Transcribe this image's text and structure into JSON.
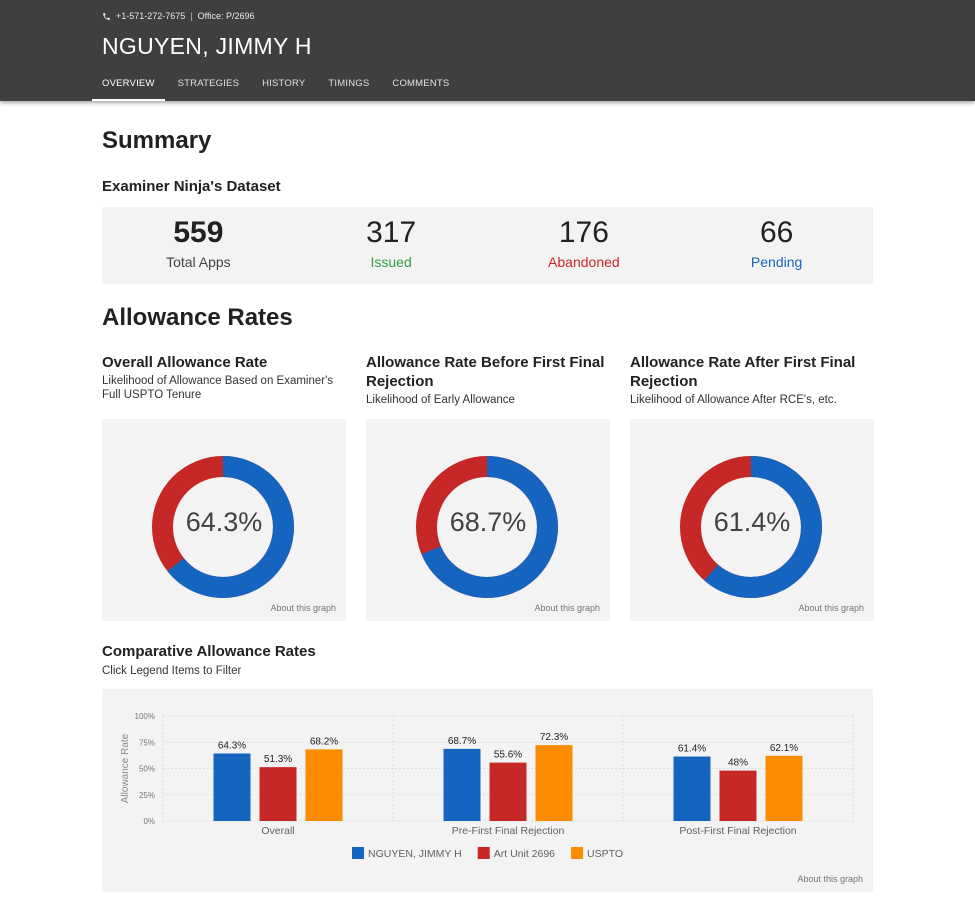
{
  "header": {
    "phone": "+1-571-272-7675",
    "separator": "|",
    "office": "Office: P/2696",
    "name": "NGUYEN, JIMMY H",
    "tabs": [
      {
        "label": "OVERVIEW",
        "active": true
      },
      {
        "label": "STRATEGIES",
        "active": false
      },
      {
        "label": "HISTORY",
        "active": false
      },
      {
        "label": "TIMINGS",
        "active": false
      },
      {
        "label": "COMMENTS",
        "active": false
      }
    ]
  },
  "summary": {
    "title": "Summary",
    "dataset_title": "Examiner Ninja's Dataset",
    "stats": [
      {
        "value": "559",
        "label": "Total Apps"
      },
      {
        "value": "317",
        "label": "Issued"
      },
      {
        "value": "176",
        "label": "Abandoned"
      },
      {
        "value": "66",
        "label": "Pending"
      }
    ]
  },
  "allowance": {
    "title": "Allowance Rates",
    "about_label": "About this graph",
    "cards": [
      {
        "title": "Overall Allowance Rate",
        "subtitle": "Likelihood of Allowance Based on Examiner's Full USPTO Tenure",
        "pct_label": "64.3%",
        "rate": 0.643
      },
      {
        "title": "Allowance Rate Before First Final Rejection",
        "subtitle": "Likelihood of Early Allowance",
        "pct_label": "68.7%",
        "rate": 0.687
      },
      {
        "title": "Allowance Rate After First Final Rejection",
        "subtitle": "Likelihood of Allowance After RCE's, etc.",
        "pct_label": "61.4%",
        "rate": 0.614
      }
    ]
  },
  "comparative": {
    "title": "Comparative Allowance Rates",
    "subtitle": "Click Legend Items to Filter",
    "about_label": "About this graph"
  },
  "colors": {
    "blue": "#1565c0",
    "red": "#c62828",
    "orange": "#fb8c00",
    "green": "#2e9d3f"
  },
  "chart_data": {
    "type": "bar",
    "categories": [
      "Overall",
      "Pre-First Final Rejection",
      "Post-First Final Rejection"
    ],
    "series": [
      {
        "name": "NGUYEN, JIMMY H",
        "values": [
          64.3,
          68.7,
          61.4
        ],
        "labels": [
          "64.3%",
          "68.7%",
          "61.4%"
        ],
        "color": "#1565c0"
      },
      {
        "name": "Art Unit 2696",
        "values": [
          51.3,
          55.6,
          48
        ],
        "labels": [
          "51.3%",
          "55.6%",
          "48%"
        ],
        "color": "#c62828"
      },
      {
        "name": "USPTO",
        "values": [
          68.2,
          72.3,
          62.1
        ],
        "labels": [
          "68.2%",
          "72.3%",
          "62.1%"
        ],
        "color": "#fb8c00"
      }
    ],
    "ylabel": "Allowance Rate",
    "yticks": [
      "0%",
      "25%",
      "50%",
      "75%",
      "100%"
    ],
    "ylim": [
      0,
      100
    ],
    "legend": "bottom",
    "grid": true
  }
}
